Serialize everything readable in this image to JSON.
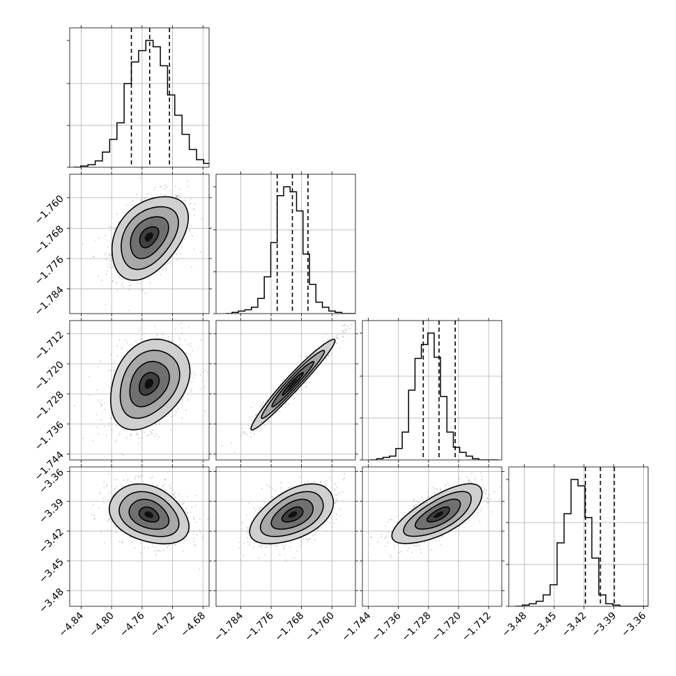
{
  "chart_data": {
    "type": "corner",
    "params": [
      {
        "range": [
          -4.855,
          -4.672
        ],
        "ticks": [
          -4.84,
          -4.8,
          -4.76,
          -4.72,
          -4.68
        ],
        "tick_labels": [
          "−4.84",
          "−4.80",
          "−4.76",
          "−4.72",
          "−4.68"
        ],
        "quantiles": [
          -4.774,
          -4.75,
          -4.724
        ],
        "hist": {
          "start": -4.85,
          "step": 0.0095,
          "counts": [
            0,
            1,
            2,
            5,
            12,
            22,
            35,
            66,
            83,
            92,
            100,
            95,
            80,
            57,
            41,
            26,
            14,
            6,
            3,
            1
          ]
        }
      },
      {
        "range": [
          -1.7905,
          -1.7538
        ],
        "ticks": [
          -1.784,
          -1.776,
          -1.768,
          -1.76
        ],
        "tick_labels": [
          "−1.784",
          "−1.776",
          "−1.768",
          "−1.760"
        ],
        "quantiles": [
          -1.7744,
          -1.7704,
          -1.7663
        ],
        "hist": {
          "start": -1.788,
          "step": 0.0017,
          "counts": [
            0,
            1,
            2,
            3,
            5,
            12,
            29,
            56,
            93,
            100,
            96,
            81,
            47,
            23,
            9,
            5,
            2,
            1,
            0,
            0
          ]
        }
      },
      {
        "range": [
          -1.7456,
          -1.7085
        ],
        "ticks": [
          -1.744,
          -1.736,
          -1.728,
          -1.72,
          -1.712
        ],
        "tick_labels": [
          "−1.744",
          "−1.736",
          "−1.728",
          "−1.720",
          "−1.712"
        ],
        "quantiles": [
          -1.7294,
          -1.7252,
          -1.7209
        ],
        "hist": {
          "start": -1.7435,
          "step": 0.0017,
          "counts": [
            0,
            1,
            2,
            3,
            9,
            22,
            55,
            80,
            91,
            100,
            81,
            50,
            22,
            10,
            6,
            3,
            1,
            0,
            0,
            0
          ]
        }
      },
      {
        "range": [
          -3.4956,
          -3.3555
        ],
        "ticks": [
          -3.48,
          -3.45,
          -3.42,
          -3.39,
          -3.36
        ],
        "tick_labels": [
          "−3.48",
          "−3.45",
          "−3.42",
          "−3.39",
          "−3.36"
        ],
        "quantiles": [
          -3.4185,
          -3.4035,
          -3.3895
        ],
        "hist": {
          "start": -3.489,
          "step": 0.007,
          "counts": [
            0,
            1,
            2,
            4,
            9,
            17,
            50,
            73,
            100,
            95,
            70,
            38,
            9,
            2,
            1,
            0,
            0,
            0,
            0,
            0
          ]
        }
      }
    ],
    "pairs": [
      {
        "x": 0,
        "y": 1,
        "center": [
          -4.751,
          -1.7703
        ],
        "sd": [
          0.025,
          0.0055
        ],
        "corr": 0.4
      },
      {
        "x": 0,
        "y": 2,
        "center": [
          -4.751,
          -1.7253
        ],
        "sd": [
          0.026,
          0.006
        ],
        "corr": 0.3
      },
      {
        "x": 1,
        "y": 2,
        "center": [
          -1.7703,
          -1.7253
        ],
        "sd": [
          0.0055,
          0.006
        ],
        "corr": 0.97
      },
      {
        "x": 0,
        "y": 3,
        "center": [
          -4.751,
          -3.4035
        ],
        "sd": [
          0.026,
          0.015
        ],
        "corr": -0.3
      },
      {
        "x": 1,
        "y": 3,
        "center": [
          -1.7703,
          -3.4035
        ],
        "sd": [
          0.0055,
          0.015
        ],
        "corr": 0.5
      },
      {
        "x": 2,
        "y": 3,
        "center": [
          -1.7253,
          -3.4035
        ],
        "sd": [
          0.006,
          0.015
        ],
        "corr": 0.7
      }
    ],
    "contour_levels_sigma": [
      0.5,
      1.0,
      1.5,
      2.0
    ],
    "grid": true,
    "title": "",
    "xlabel": "",
    "ylabel": "",
    "colors": {
      "lines": "#000000",
      "grid": "#b0b0b0",
      "points": "#808080",
      "quantiles": "#000000"
    }
  }
}
